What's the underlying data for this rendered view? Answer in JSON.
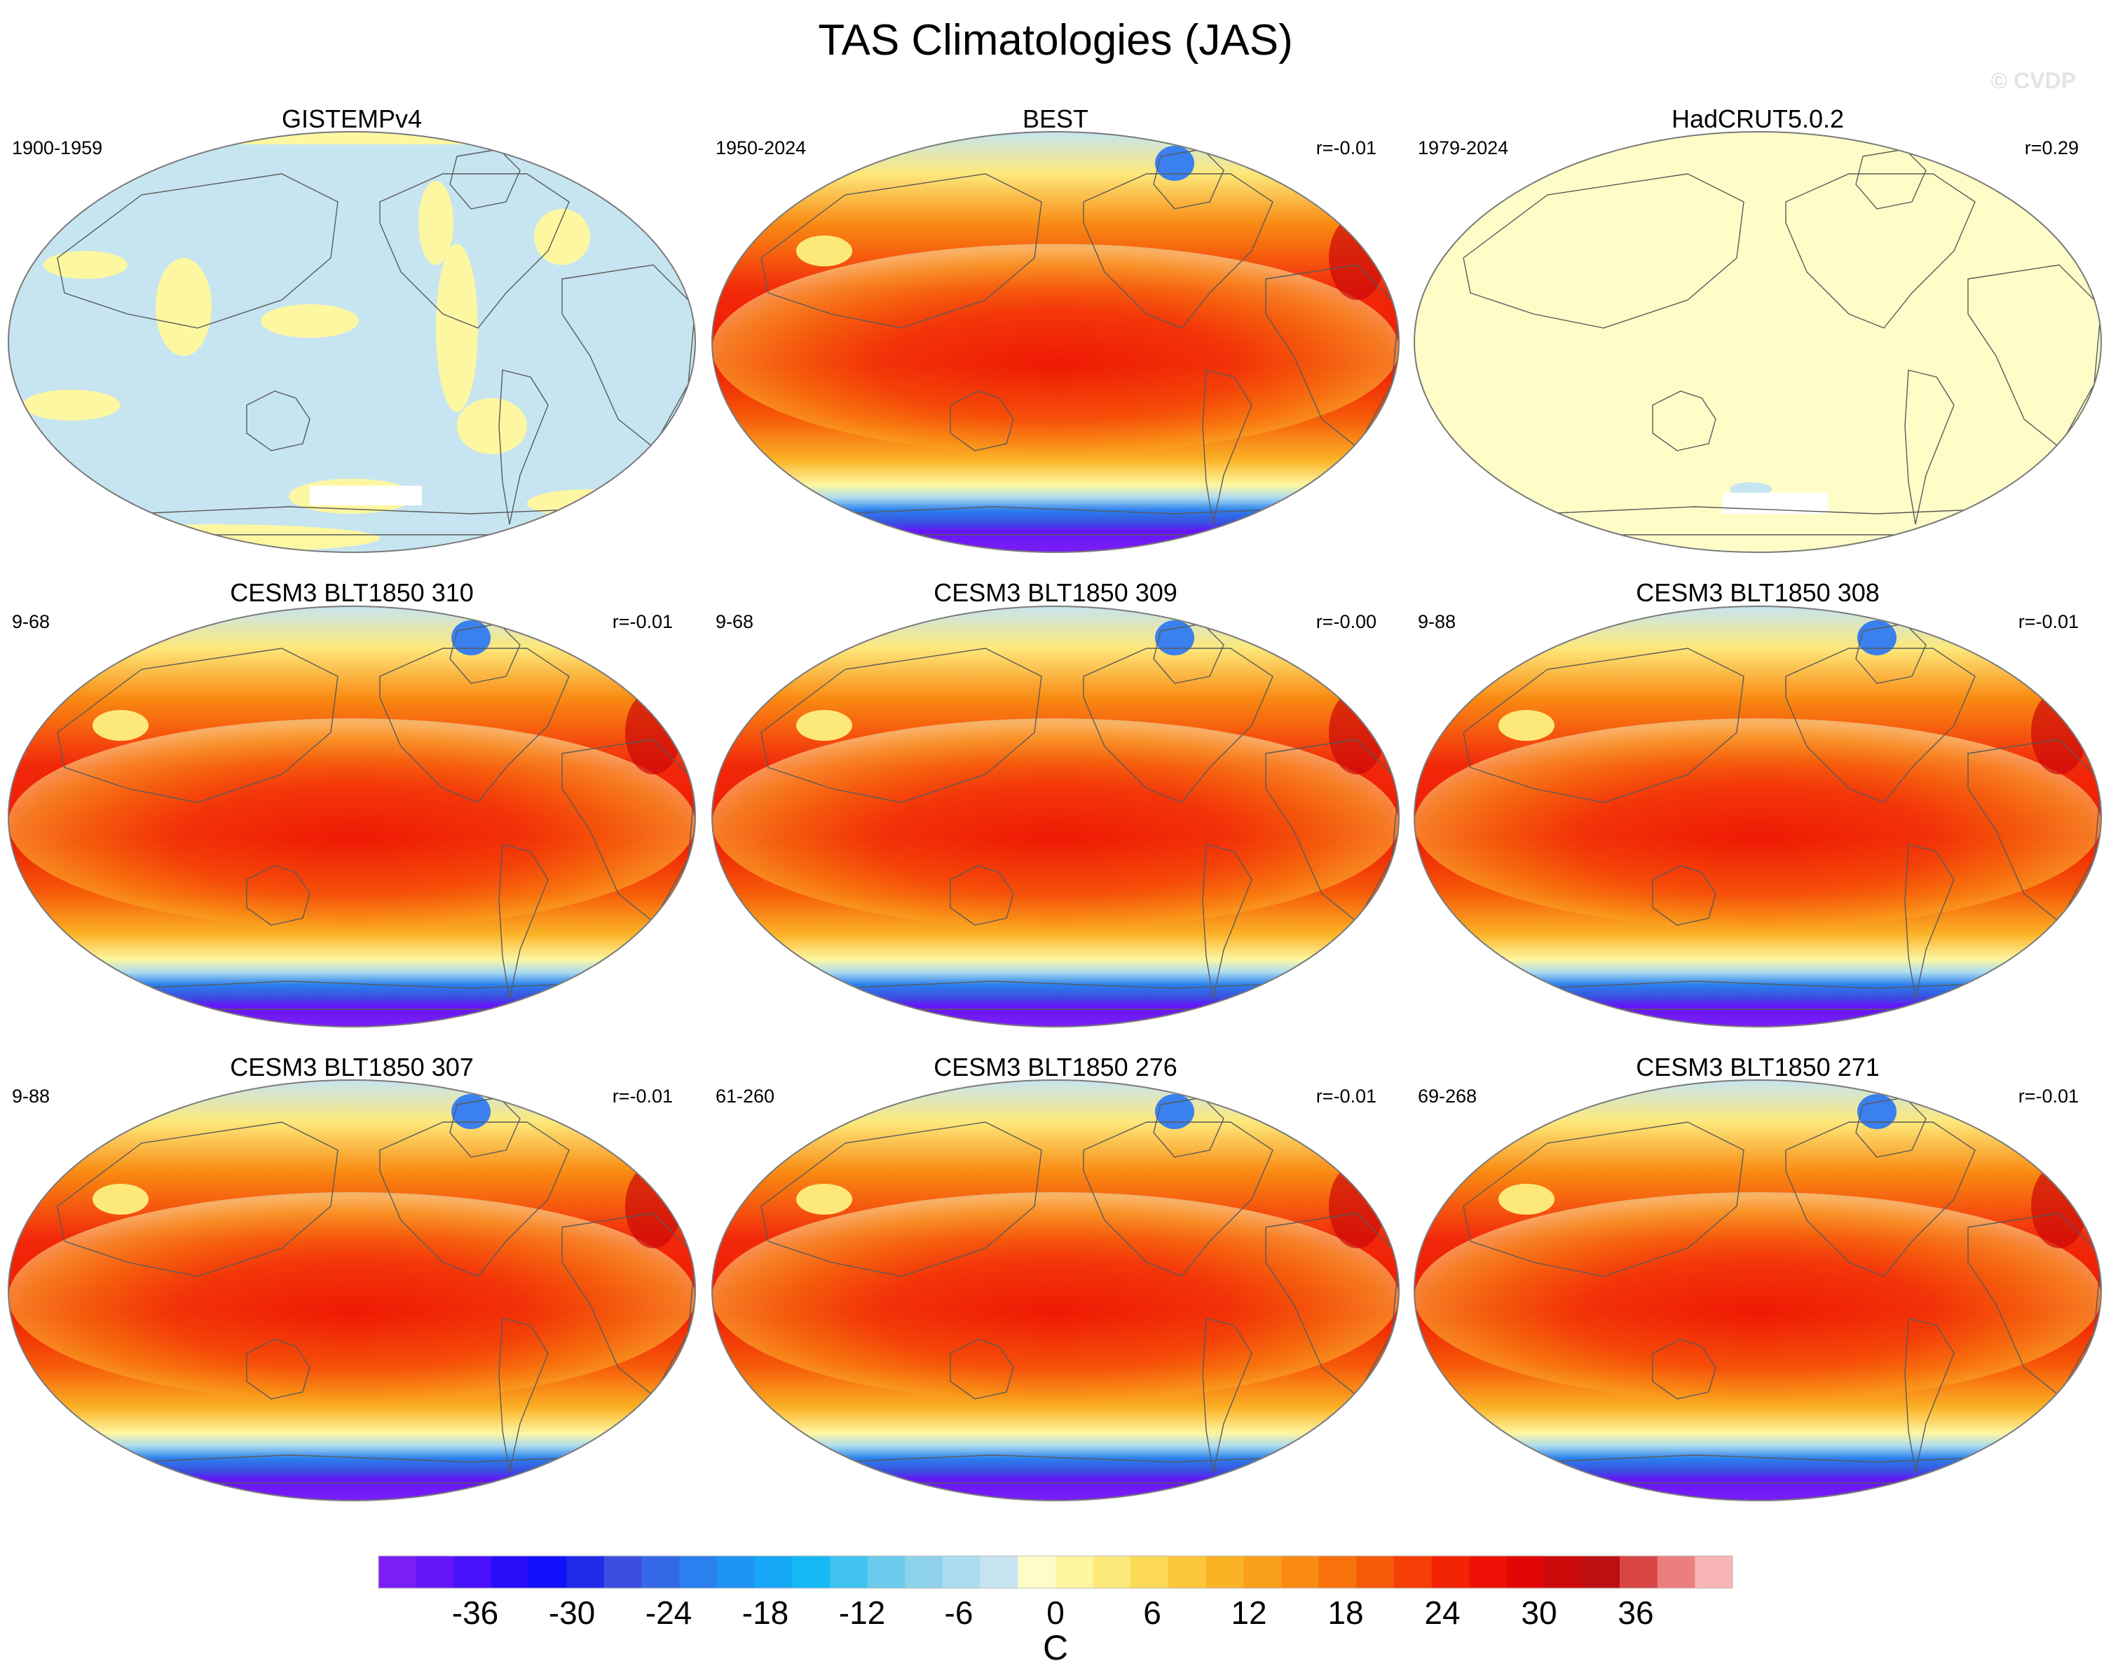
{
  "figure": {
    "title": "TAS Climatologies (JAS)",
    "watermark": "© CVDP"
  },
  "panels": [
    {
      "title": "GISTEMPv4",
      "left_label": "1900-1959",
      "right_label": "",
      "style": "gistemp"
    },
    {
      "title": "BEST",
      "left_label": "1950-2024",
      "right_label": "r=-0.01",
      "style": "obs"
    },
    {
      "title": "HadCRUT5.0.2",
      "left_label": "1979-2024",
      "right_label": "r=0.29",
      "style": "hadcrut"
    },
    {
      "title": "CESM3 BLT1850 310",
      "left_label": "9-68",
      "right_label": "r=-0.01",
      "style": "model"
    },
    {
      "title": "CESM3 BLT1850 309",
      "left_label": "9-68",
      "right_label": "r=-0.00",
      "style": "model"
    },
    {
      "title": "CESM3 BLT1850 308",
      "left_label": "9-88",
      "right_label": "r=-0.01",
      "style": "model"
    },
    {
      "title": "CESM3 BLT1850 307",
      "left_label": "9-88",
      "right_label": "r=-0.01",
      "style": "model"
    },
    {
      "title": "CESM3 BLT1850 276",
      "left_label": "61-260",
      "right_label": "r=-0.01",
      "style": "model"
    },
    {
      "title": "CESM3 BLT1850 271",
      "left_label": "69-268",
      "right_label": "r=-0.01",
      "style": "model"
    }
  ],
  "colorbar": {
    "unit": "C",
    "min": -42,
    "max": 42,
    "step": 2,
    "tick_labels": [
      "-36",
      "-30",
      "-24",
      "-18",
      "-12",
      "-6",
      "0",
      "6",
      "12",
      "18",
      "24",
      "30",
      "36"
    ],
    "colors": [
      "#7a1ef5",
      "#6416f8",
      "#4a12fa",
      "#2a0cfb",
      "#1010fb",
      "#1f2be8",
      "#3a4fe0",
      "#3468e6",
      "#2a80ee",
      "#1e95f5",
      "#16a8f7",
      "#14b8f5",
      "#3fc2ef",
      "#6ccbec",
      "#8fd2ec",
      "#acdcef",
      "#c6e5f1",
      "#fefdc8",
      "#fdf7a2",
      "#fde87a",
      "#fcd955",
      "#fcc63a",
      "#fbb326",
      "#fa9f1a",
      "#f98a12",
      "#f8720c",
      "#f65a08",
      "#f43e05",
      "#f22404",
      "#ee1004",
      "#e00606",
      "#cc0909",
      "#bd0f0f",
      "#d94545",
      "#ec7e7e",
      "#f7b5b5"
    ]
  }
}
